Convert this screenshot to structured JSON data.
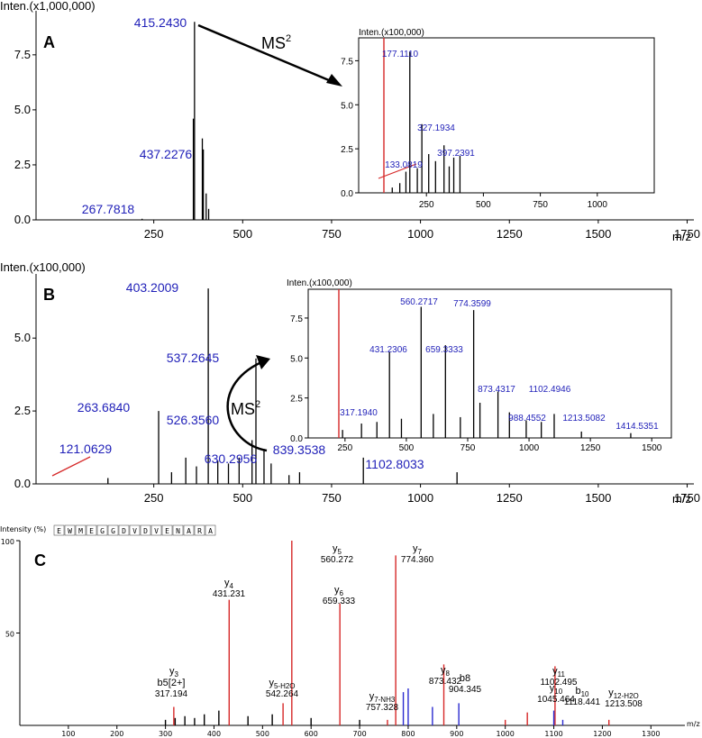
{
  "panels": [
    {
      "id": "A",
      "letter": "A",
      "ylabel": "Inten.(x1,000,000)",
      "xunit": "m/z",
      "yticks": [
        "0.0",
        "2.5",
        "5.0",
        "7.5"
      ],
      "xticks": [
        "250",
        "500",
        "750",
        "1000",
        "1250",
        "1500",
        "1750"
      ],
      "annotation": "MS",
      "inset": {
        "ylabel": "Inten.(x100,000)",
        "yticks": [
          "0.0",
          "2.5",
          "5.0",
          "7.5"
        ],
        "xticks": [
          "250",
          "500",
          "750",
          "1000"
        ],
        "peaks": [
          "177.1110",
          "327.1934",
          "397.2391",
          "133.0819"
        ]
      },
      "peaks": [
        "415.2430",
        "437.2276",
        "267.7818"
      ]
    },
    {
      "id": "B",
      "letter": "B",
      "ylabel": "Inten.(x100,000)",
      "xunit": "m/z",
      "yticks": [
        "0.0",
        "2.5",
        "5.0"
      ],
      "xticks": [
        "250",
        "500",
        "750",
        "1000",
        "1250",
        "1500",
        "1750"
      ],
      "annotation": "MS",
      "inset": {
        "ylabel": "Inten.(x100,000)",
        "yticks": [
          "0.0",
          "2.5",
          "5.0",
          "7.5"
        ],
        "xticks": [
          "250",
          "500",
          "750",
          "1000",
          "1250",
          "1500"
        ],
        "peaks": [
          "560.2717",
          "774.3599",
          "431.2306",
          "659.3333",
          "873.4317",
          "1102.4946",
          "317.1940",
          "988.4552",
          "1213.5082",
          "1414.5351"
        ]
      },
      "peaks": [
        "403.2009",
        "537.2645",
        "263.6840",
        "526.3560",
        "121.0629",
        "839.3538",
        "630.2956",
        "1102.8033"
      ]
    },
    {
      "id": "C",
      "letter": "C",
      "ylabel": "Intensity (%)",
      "xunit": "m/z",
      "yticks": [
        "100",
        "50"
      ],
      "xticks": [
        "100",
        "200",
        "300",
        "400",
        "500",
        "600",
        "700",
        "800",
        "900",
        "1000",
        "1100",
        "1200",
        "1300"
      ],
      "sequence": [
        "E",
        "W",
        "M",
        "E",
        "G",
        "G",
        "D",
        "V",
        "D",
        "V",
        "E",
        "N",
        "A",
        "R",
        "A"
      ],
      "ions": [
        {
          "name": "y",
          "sub": "5",
          "value": "560.272"
        },
        {
          "name": "y",
          "sub": "7",
          "value": "774.360"
        },
        {
          "name": "y",
          "sub": "4",
          "value": "431.231"
        },
        {
          "name": "y",
          "sub": "6",
          "value": "659.333"
        },
        {
          "name": "y",
          "sub": "8",
          "value": "873.432"
        },
        {
          "name": "b8",
          "sub": "",
          "value": "904.345"
        },
        {
          "name": "y",
          "sub": "11",
          "value": "1102.495"
        },
        {
          "name": "y",
          "sub": "3",
          "value": ""
        },
        {
          "name": "b5[2+]",
          "sub": "",
          "value": "317.194"
        },
        {
          "name": "y",
          "sub": "5-H2O",
          "value": "542.264"
        },
        {
          "name": "y",
          "sub": "7-NH3",
          "value": "757.328"
        },
        {
          "name": "y",
          "sub": "10",
          "value": "1045.464"
        },
        {
          "name": "b",
          "sub": "10",
          "value": "1118.441"
        },
        {
          "name": "y",
          "sub": "12-H2O",
          "value": "1213.508"
        }
      ]
    }
  ],
  "chart_data": [
    {
      "type": "bar",
      "panel": "A",
      "ylabel": "Inten.(x1,000,000)",
      "xlabel": "m/z",
      "xlim": [
        0,
        1850
      ],
      "ylim": [
        0,
        9.5
      ],
      "x": [
        267.7818,
        415.243,
        412,
        437.2276,
        440,
        448,
        455
      ],
      "values": [
        0.05,
        9.0,
        4.6,
        3.7,
        3.2,
        1.2,
        0.5
      ],
      "labels": [
        "267.7818",
        "415.2430",
        "",
        "437.2276",
        "",
        "",
        ""
      ],
      "inset": {
        "ylabel": "Inten.(x100,000)",
        "xlim": [
          0,
          1250
        ],
        "ylim": [
          0,
          8.8
        ],
        "x": [
          100,
          133.0819,
          160,
          177.111,
          210,
          230,
          260,
          290,
          327.1934,
          350,
          370,
          397.2391
        ],
        "values": [
          0.3,
          0.55,
          1.2,
          8.0,
          1.4,
          3.9,
          2.2,
          1.8,
          2.7,
          1.5,
          2.0,
          2.1
        ],
        "labels": [
          "",
          "133.0819",
          "",
          "177.1110",
          "",
          "",
          "",
          "",
          "327.1934",
          "",
          "",
          "397.2391"
        ]
      }
    },
    {
      "type": "bar",
      "panel": "B",
      "ylabel": "Inten.(x100,000)",
      "xlabel": "m/z",
      "xlim": [
        0,
        1850
      ],
      "ylim": [
        0,
        7.2
      ],
      "x": [
        121.0629,
        263.684,
        300,
        340,
        370,
        403.2009,
        430,
        460,
        490,
        526.356,
        537.2645,
        560,
        580,
        630.2956,
        660,
        839.3538,
        1102.8033
      ],
      "values": [
        0.2,
        2.5,
        0.4,
        0.9,
        0.6,
        6.7,
        0.8,
        0.7,
        0.9,
        1.5,
        4.3,
        1.2,
        0.7,
        0.3,
        0.4,
        0.9,
        0.4
      ],
      "labels": [
        "121.0629",
        "263.6840",
        "",
        "",
        "",
        "403.2009",
        "",
        "",
        "",
        "526.3560",
        "537.2645",
        "",
        "",
        "630.2956",
        "",
        "839.3538",
        "1102.8033"
      ],
      "inset": {
        "ylabel": "Inten.(x100,000)",
        "xlim": [
          100,
          1580
        ],
        "ylim": [
          0,
          9.3
        ],
        "x": [
          240,
          317.194,
          380,
          431.2306,
          480,
          560.2717,
          610,
          659.3333,
          720,
          774.3599,
          800,
          873.4317,
          920,
          988.4552,
          1050,
          1102.4946,
          1213.5082,
          1414.5351
        ],
        "values": [
          0.5,
          0.9,
          1.0,
          5.4,
          1.2,
          8.2,
          1.5,
          5.8,
          1.3,
          8.0,
          2.2,
          2.9,
          1.6,
          1.1,
          1.0,
          1.5,
          0.4,
          0.3
        ],
        "labels": [
          "",
          "317.1940",
          "",
          "431.2306",
          "",
          "560.2717",
          "",
          "659.3333",
          "",
          "774.3599",
          "",
          "873.4317",
          "",
          "988.4552",
          "",
          "1102.4946",
          "1213.5082",
          "1414.5351"
        ]
      }
    },
    {
      "type": "bar",
      "panel": "C",
      "ylabel": "Intensity (%)",
      "xlabel": "m/z",
      "xlim": [
        0,
        1370
      ],
      "ylim": [
        0,
        100
      ],
      "x": [
        317.194,
        431.231,
        542.264,
        560.272,
        659.333,
        757.328,
        774.36,
        873.432,
        904.345,
        1045.464,
        1102.495,
        1118.441,
        1213.508,
        300,
        320,
        340,
        360,
        380,
        410,
        470,
        520,
        600,
        700,
        790,
        800,
        850,
        1000,
        1100
      ],
      "values": [
        10,
        68,
        12,
        100,
        66,
        3,
        92,
        33,
        12,
        7,
        32,
        3,
        3,
        3,
        4,
        5,
        4,
        6,
        8,
        5,
        6,
        4,
        3,
        18,
        20,
        10,
        3,
        8
      ],
      "labels": [
        "b5[2+]",
        "y4",
        "y5-H2O",
        "y5",
        "y6",
        "y7-NH3",
        "y7",
        "y8",
        "b8",
        "y10",
        "y11",
        "b10",
        "y12-H2O",
        "",
        "",
        "",
        "",
        "",
        "",
        "",
        "",
        "",
        "",
        "",
        "",
        "",
        "",
        ""
      ],
      "colors": [
        "r",
        "r",
        "r",
        "r",
        "r",
        "r",
        "r",
        "r",
        "b",
        "r",
        "r",
        "b",
        "r",
        "k",
        "k",
        "k",
        "k",
        "k",
        "k",
        "k",
        "k",
        "k",
        "k",
        "b",
        "b",
        "b",
        "r",
        "b"
      ]
    }
  ],
  "colors": {
    "label": "#1f1fb8",
    "red": "#d62828",
    "blue": "#2a2acf",
    "black": "#000000"
  }
}
